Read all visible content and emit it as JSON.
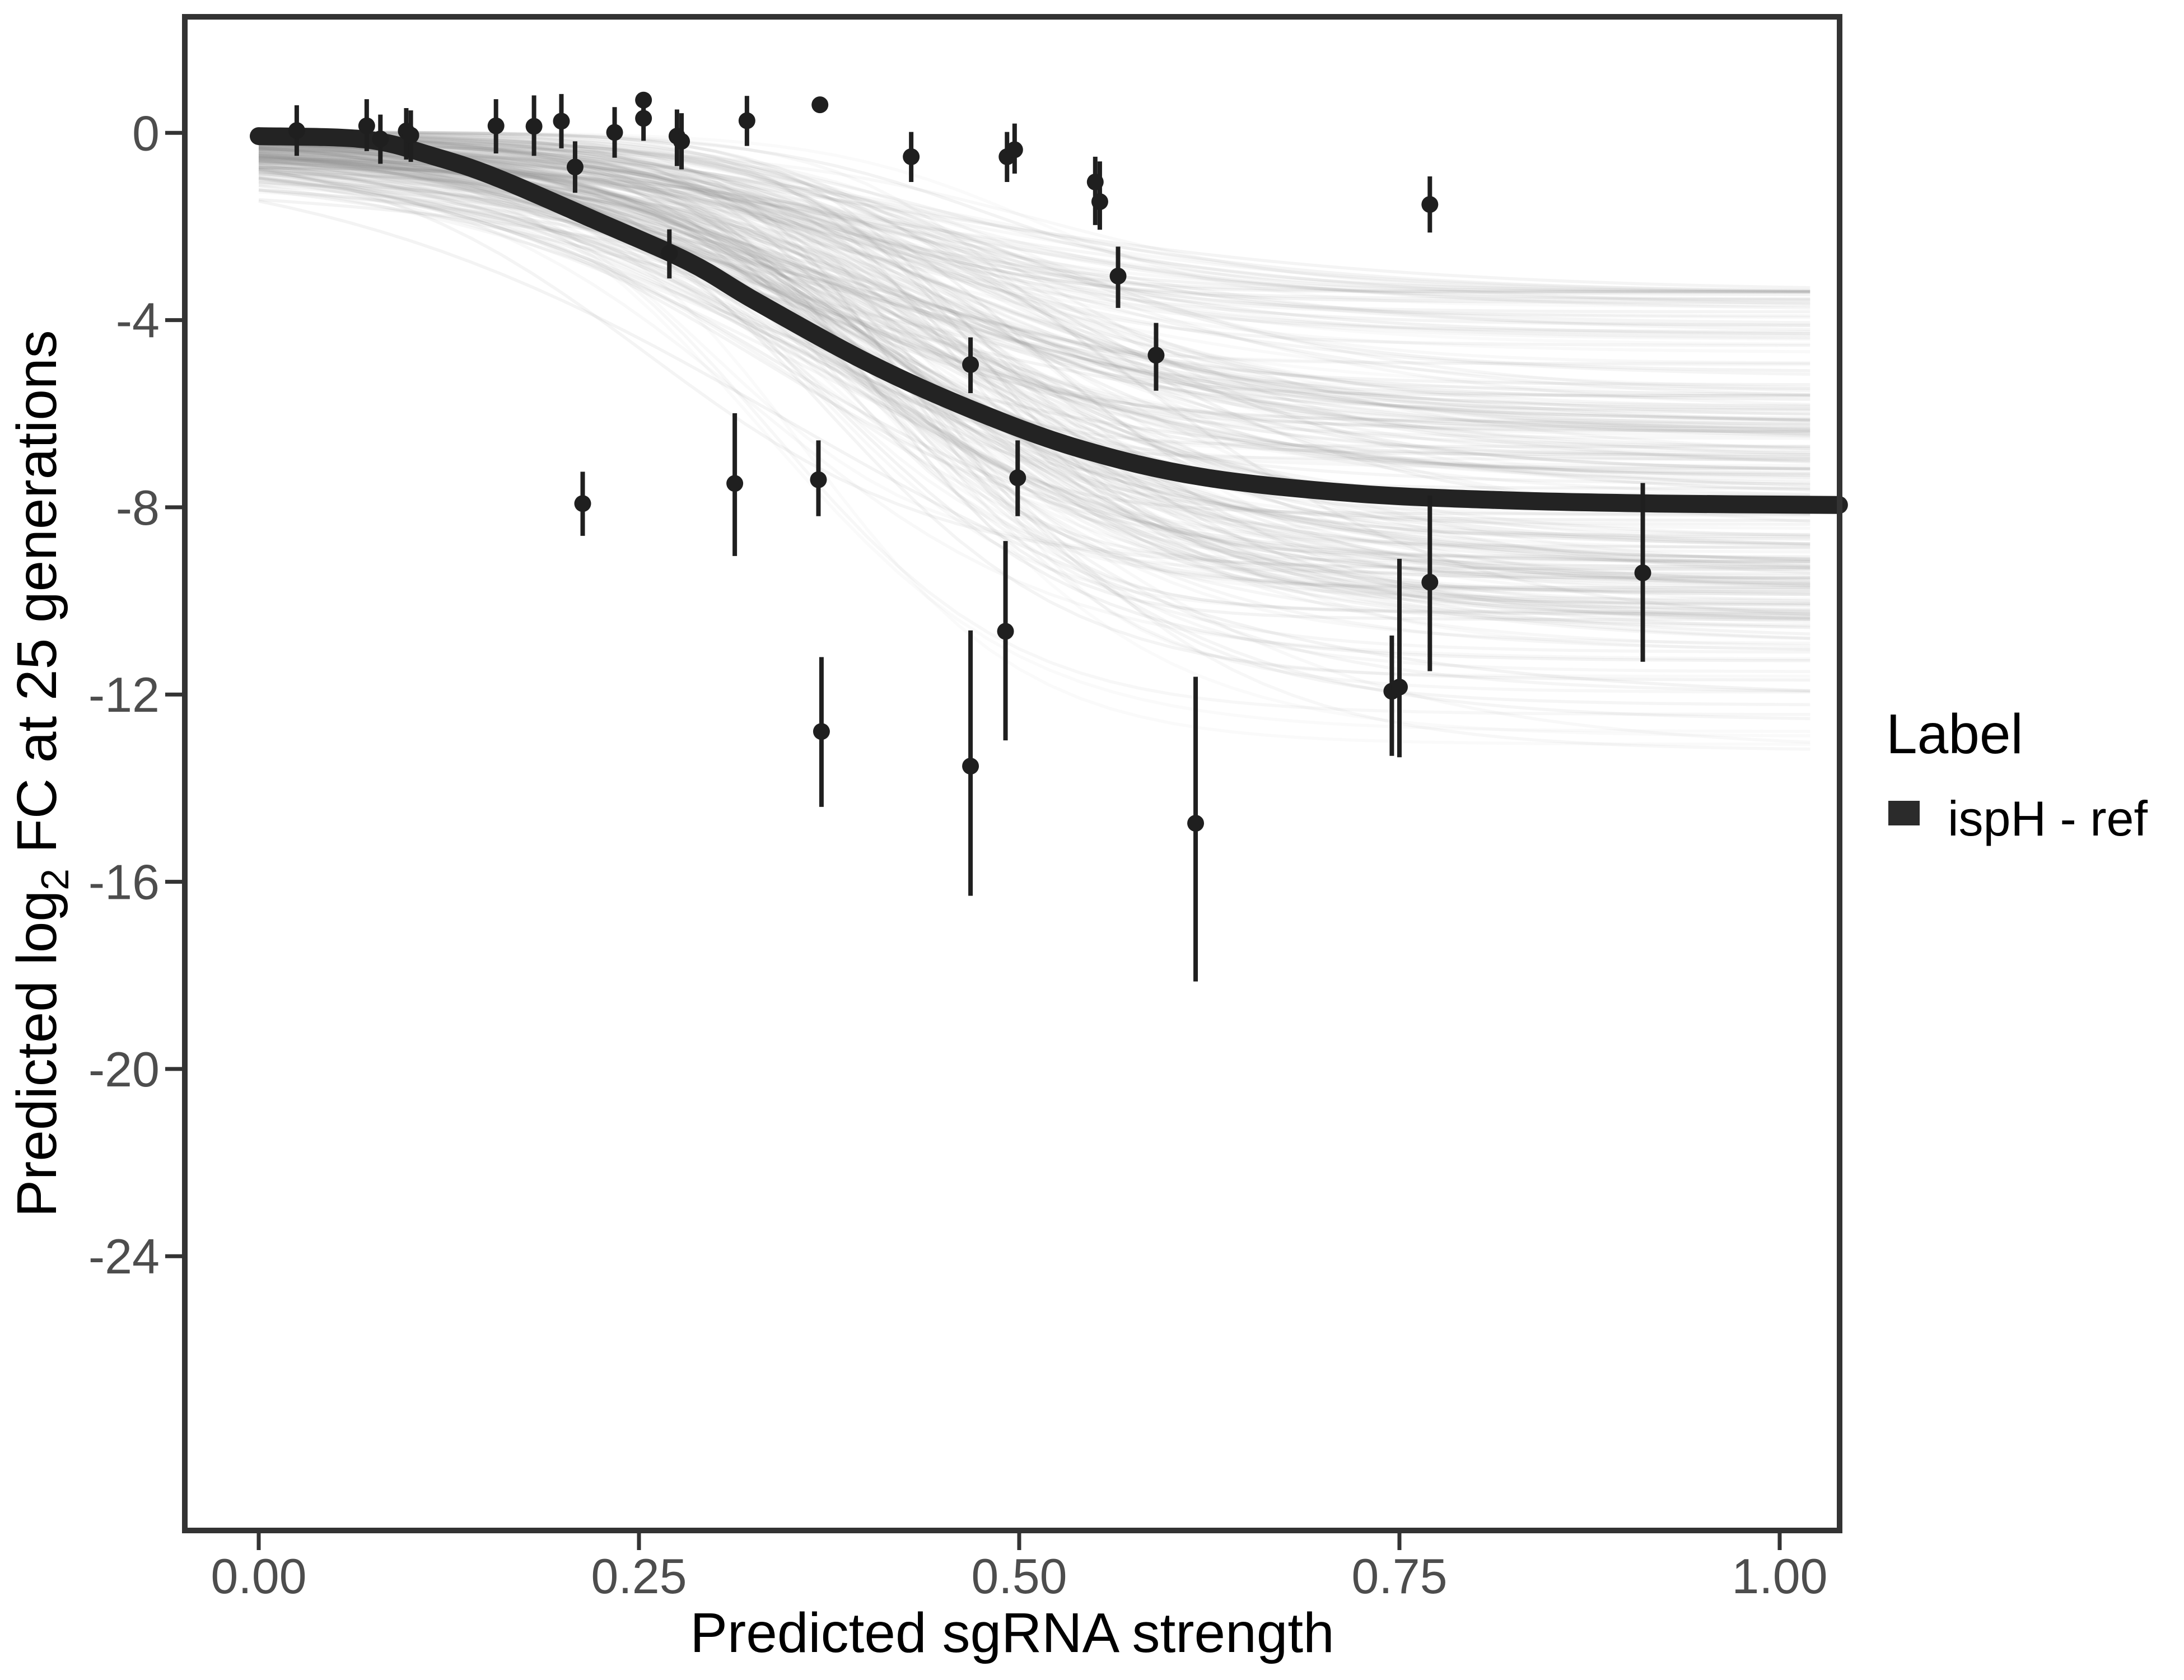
{
  "axes": {
    "x": {
      "title": "Predicted sgRNA strength",
      "ticks": [
        0.0,
        0.25,
        0.5,
        0.75,
        1.0
      ],
      "tick_labels": [
        "0.00",
        "0.25",
        "0.50",
        "0.75",
        "1.00"
      ],
      "range": [
        -0.0486,
        1.0394
      ]
    },
    "y": {
      "title_parts": [
        "Predicted  log",
        "2",
        " FC at 25 generations"
      ],
      "ticks": [
        0,
        -4,
        -8,
        -12,
        -16,
        -20,
        -24
      ],
      "tick_labels": [
        "0",
        "-4",
        "-8",
        "-12",
        "-16",
        "-20",
        "-24"
      ],
      "range": [
        2.48,
        -29.86
      ]
    }
  },
  "legend": {
    "title": "Label",
    "items": [
      {
        "label": "ispH - ref",
        "color": "#2b2b2b"
      }
    ],
    "position": "right-middle"
  },
  "chart_data": {
    "type": "scatter",
    "subtype": "points-with-error-bars + fitted sigmoid + posterior draw ensemble",
    "title": "",
    "xlabel": "Predicted sgRNA strength",
    "ylabel": "Predicted log2 FC at 25 generations",
    "xlim": [
      -0.0486,
      1.0394
    ],
    "ylim": [
      -29.86,
      2.48
    ],
    "grid": "off",
    "legend_position": "right-middle",
    "colors": {
      "point": "#1f1f1f",
      "mean_curve": "#232323",
      "ensemble": "#8f8f8f",
      "panel_border": "#333333",
      "tick": "#333333",
      "tick_label": "#4d4d4d"
    },
    "points": [
      {
        "x": 0.025,
        "y": 0.05,
        "ymin": -0.49,
        "ymax": 0.59
      },
      {
        "x": 0.071,
        "y": 0.15,
        "ymin": -0.39,
        "ymax": 0.72
      },
      {
        "x": 0.08,
        "y": -0.13,
        "ymin": -0.66,
        "ymax": 0.39
      },
      {
        "x": 0.097,
        "y": 0.04,
        "ymin": -0.57,
        "ymax": 0.53
      },
      {
        "x": 0.1,
        "y": -0.05,
        "ymin": -0.62,
        "ymax": 0.48
      },
      {
        "x": 0.156,
        "y": 0.15,
        "ymin": -0.44,
        "ymax": 0.72
      },
      {
        "x": 0.181,
        "y": 0.14,
        "ymin": -0.49,
        "ymax": 0.8
      },
      {
        "x": 0.199,
        "y": 0.25,
        "ymin": -0.33,
        "ymax": 0.83
      },
      {
        "x": 0.208,
        "y": -0.73,
        "ymin": -1.28,
        "ymax": -0.18
      },
      {
        "x": 0.213,
        "y": -7.92,
        "ymin": -8.61,
        "ymax": -7.24
      },
      {
        "x": 0.234,
        "y": 0.01,
        "ymin": -0.53,
        "ymax": 0.55
      },
      {
        "x": 0.253,
        "y": 0.7,
        "ymin": 0.25,
        "ymax": 0.87
      },
      {
        "x": 0.253,
        "y": 0.31,
        "ymin": -0.17,
        "ymax": 0.59
      },
      {
        "x": 0.27,
        "y": -2.57,
        "ymin": -3.11,
        "ymax": -2.06
      },
      {
        "x": 0.275,
        "y": -0.07,
        "ymin": -0.71,
        "ymax": 0.5
      },
      {
        "x": 0.278,
        "y": -0.18,
        "ymin": -0.78,
        "ymax": 0.42
      },
      {
        "x": 0.313,
        "y": -7.49,
        "ymin": -9.04,
        "ymax": -5.99
      },
      {
        "x": 0.321,
        "y": 0.26,
        "ymin": -0.28,
        "ymax": 0.79
      },
      {
        "x": 0.369,
        "y": 0.6,
        "ymin": 0.48,
        "ymax": 0.72
      },
      {
        "x": 0.368,
        "y": -7.41,
        "ymin": -8.19,
        "ymax": -6.57
      },
      {
        "x": 0.37,
        "y": -12.79,
        "ymin": -14.4,
        "ymax": -11.2
      },
      {
        "x": 0.429,
        "y": -0.51,
        "ymin": -1.05,
        "ymax": 0.02
      },
      {
        "x": 0.468,
        "y": -4.95,
        "ymin": -5.56,
        "ymax": -4.37
      },
      {
        "x": 0.468,
        "y": -13.53,
        "ymin": -16.3,
        "ymax": -10.63
      },
      {
        "x": 0.491,
        "y": -10.65,
        "ymin": -12.98,
        "ymax": -8.72
      },
      {
        "x": 0.499,
        "y": -7.37,
        "ymin": -8.19,
        "ymax": -6.57
      },
      {
        "x": 0.492,
        "y": -0.51,
        "ymin": -1.05,
        "ymax": 0.02
      },
      {
        "x": 0.497,
        "y": -0.36,
        "ymin": -0.87,
        "ymax": 0.2
      },
      {
        "x": 0.55,
        "y": -1.05,
        "ymin": -1.97,
        "ymax": -0.51
      },
      {
        "x": 0.553,
        "y": -1.47,
        "ymin": -2.07,
        "ymax": -0.61
      },
      {
        "x": 0.565,
        "y": -3.06,
        "ymin": -3.74,
        "ymax": -2.43
      },
      {
        "x": 0.59,
        "y": -4.75,
        "ymin": -5.51,
        "ymax": -4.06
      },
      {
        "x": 0.616,
        "y": -14.75,
        "ymin": -18.13,
        "ymax": -11.62
      },
      {
        "x": 0.745,
        "y": -11.93,
        "ymin": -13.31,
        "ymax": -10.74
      },
      {
        "x": 0.75,
        "y": -11.84,
        "ymin": -13.34,
        "ymax": -9.1
      },
      {
        "x": 0.77,
        "y": -1.53,
        "ymin": -2.13,
        "ymax": -0.93
      },
      {
        "x": 0.77,
        "y": -9.6,
        "ymin": -11.5,
        "ymax": -7.75
      },
      {
        "x": 0.91,
        "y": -9.4,
        "ymin": -11.3,
        "ymax": -7.48
      }
    ],
    "mean_curve": [
      [
        0.0,
        -0.07
      ],
      [
        0.07,
        -0.14
      ],
      [
        0.115,
        -0.5
      ],
      [
        0.156,
        -0.95
      ],
      [
        0.22,
        -1.85
      ],
      [
        0.283,
        -2.76
      ],
      [
        0.327,
        -3.6
      ],
      [
        0.4,
        -4.9
      ],
      [
        0.468,
        -5.9
      ],
      [
        0.54,
        -6.75
      ],
      [
        0.62,
        -7.35
      ],
      [
        0.72,
        -7.7
      ],
      [
        0.82,
        -7.85
      ],
      [
        0.92,
        -7.92
      ],
      [
        1.039,
        -7.95
      ]
    ],
    "ensemble": {
      "n_draws": 240,
      "seed": 42,
      "asymptote_mean": -8.1,
      "asymptote_sd": 2.4,
      "asymptote_clamp": [
        -13.2,
        -3.4
      ],
      "midpoint_mean": 0.42,
      "midpoint_sd": 0.055,
      "scale_mean": 0.105,
      "scale_sd": 0.028,
      "scale_clamp": [
        0.055,
        0.18
      ],
      "offset_mean": -0.15,
      "offset_sd": 0.35,
      "offset_clamp": [
        -1.5,
        0.02
      ],
      "opacity_min": 0.045,
      "opacity_max": 0.12
    }
  }
}
